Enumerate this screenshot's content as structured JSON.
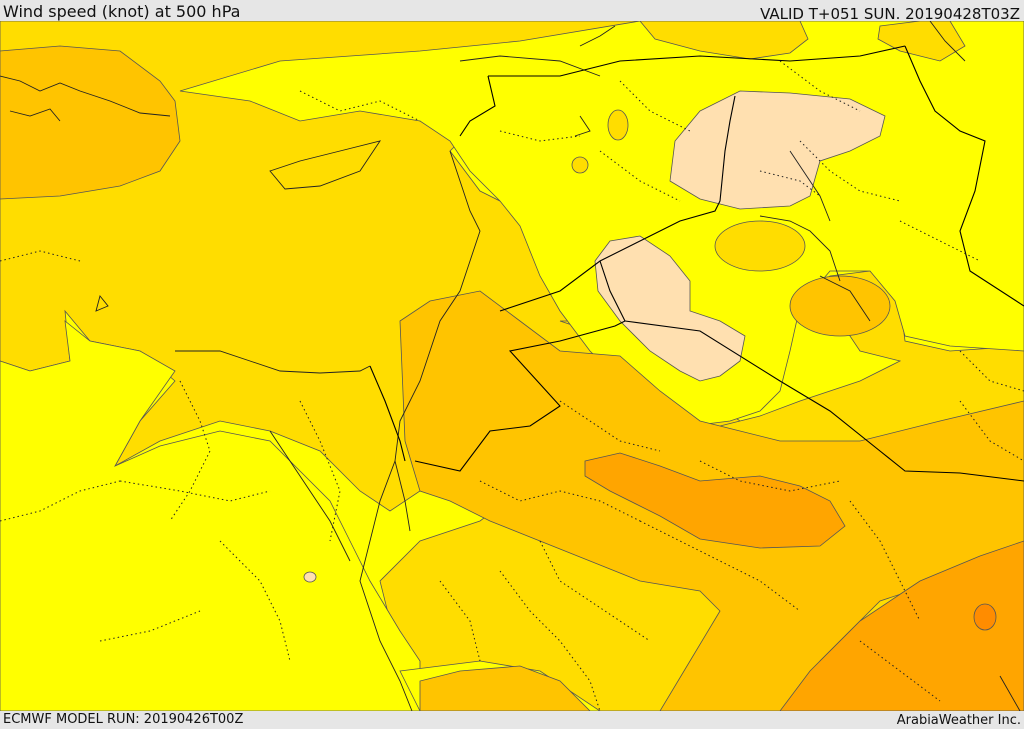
{
  "header": {
    "title": "Wind speed (knot) at 500 hPa",
    "valid_time": "VALID T+051 SUN. 20190428T03Z"
  },
  "footer": {
    "model_run": "ECMWF MODEL RUN: 20190426T00Z",
    "credit": "ArabiaWeather Inc."
  },
  "palette": {
    "yellow": "#ffff00",
    "gold": "#ffdd00",
    "amber": "#ffc400",
    "orange": "#ffa500",
    "dark_orange": "#ff8c00",
    "pale": "#ffe0b0"
  }
}
